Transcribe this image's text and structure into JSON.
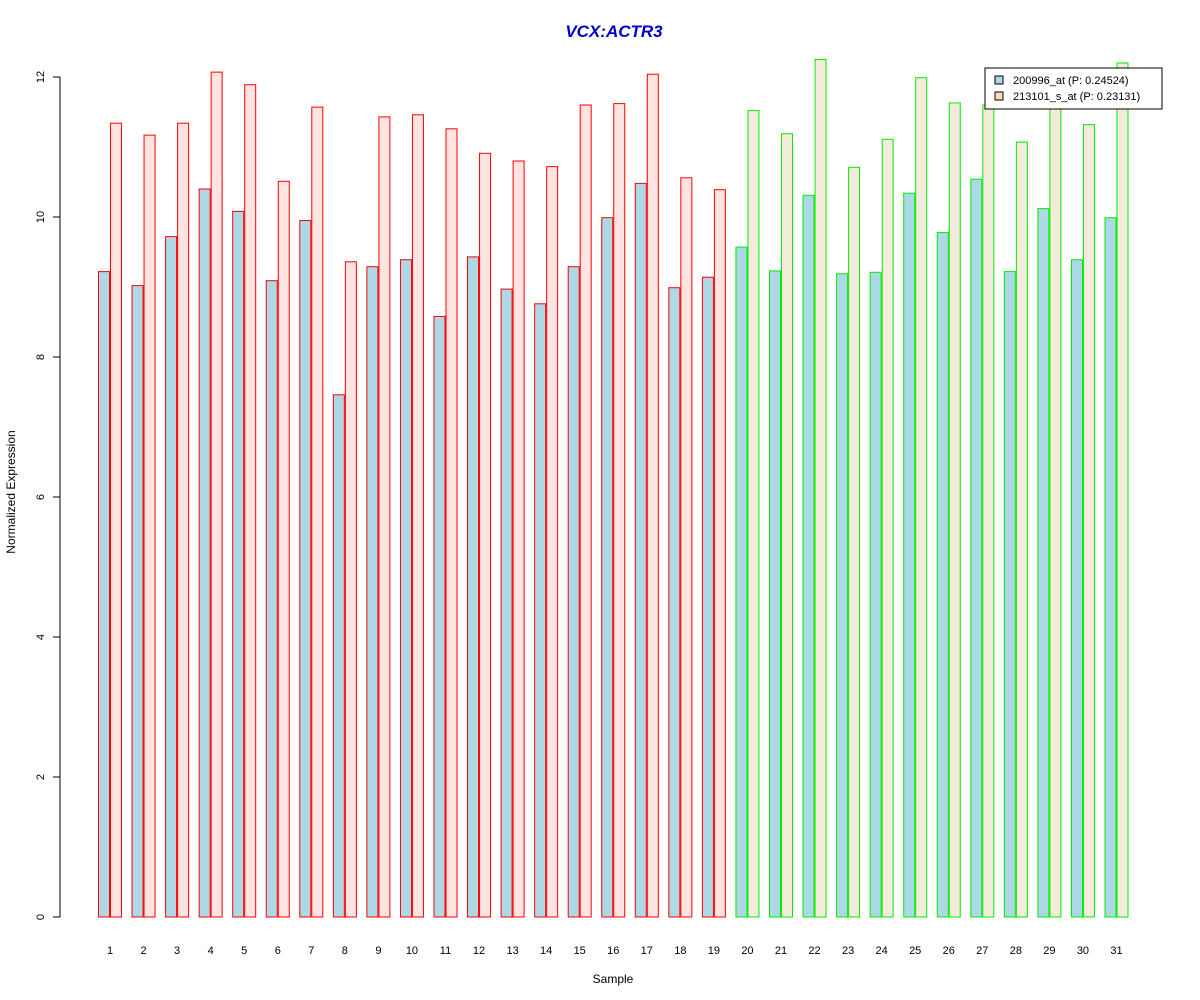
{
  "chart_data": {
    "type": "bar",
    "title": "VCX:ACTR3",
    "title_color": "#0000cc",
    "xlabel": "Sample",
    "ylabel": "Normalized Expression",
    "ylim": [
      0,
      12
    ],
    "yticks": [
      0,
      2,
      4,
      6,
      8,
      10,
      12
    ],
    "grid": false,
    "legend_position": "top-right",
    "categories": [
      "1",
      "2",
      "3",
      "4",
      "5",
      "6",
      "7",
      "8",
      "9",
      "10",
      "11",
      "12",
      "13",
      "14",
      "15",
      "16",
      "17",
      "18",
      "19",
      "20",
      "21",
      "22",
      "23",
      "24",
      "25",
      "26",
      "27",
      "28",
      "29",
      "30",
      "31"
    ],
    "series": [
      {
        "name": "200996_at (P: 0.24524)",
        "values": [
          9.22,
          9.02,
          9.72,
          10.4,
          10.08,
          9.09,
          9.95,
          7.46,
          9.29,
          9.39,
          8.58,
          9.43,
          8.97,
          8.76,
          9.29,
          9.99,
          10.48,
          8.99,
          9.14,
          9.57,
          9.23,
          10.31,
          9.19,
          9.21,
          10.34,
          9.78,
          10.54,
          9.22,
          10.12,
          9.39,
          9.99
        ]
      },
      {
        "name": "213101_s_at (P: 0.23131)",
        "values": [
          11.34,
          11.17,
          11.34,
          12.07,
          11.89,
          10.51,
          11.57,
          9.36,
          11.43,
          11.46,
          11.26,
          10.91,
          10.8,
          10.72,
          11.6,
          11.62,
          12.04,
          10.56,
          10.39,
          11.52,
          11.19,
          12.25,
          10.71,
          11.11,
          11.99,
          11.63,
          11.6,
          11.07,
          11.58,
          11.32,
          12.2
        ]
      }
    ],
    "group_split_after": 19,
    "colors": {
      "series1_fill": "#add8e6",
      "series2_fill_group1": "#ffe4e1",
      "series2_fill_group2": "#f5ebdc",
      "group1_border": "#ff0000",
      "group2_border": "#00ee00",
      "legend_swatch1": "#add8e6",
      "legend_swatch2": "#ffdab9"
    }
  }
}
